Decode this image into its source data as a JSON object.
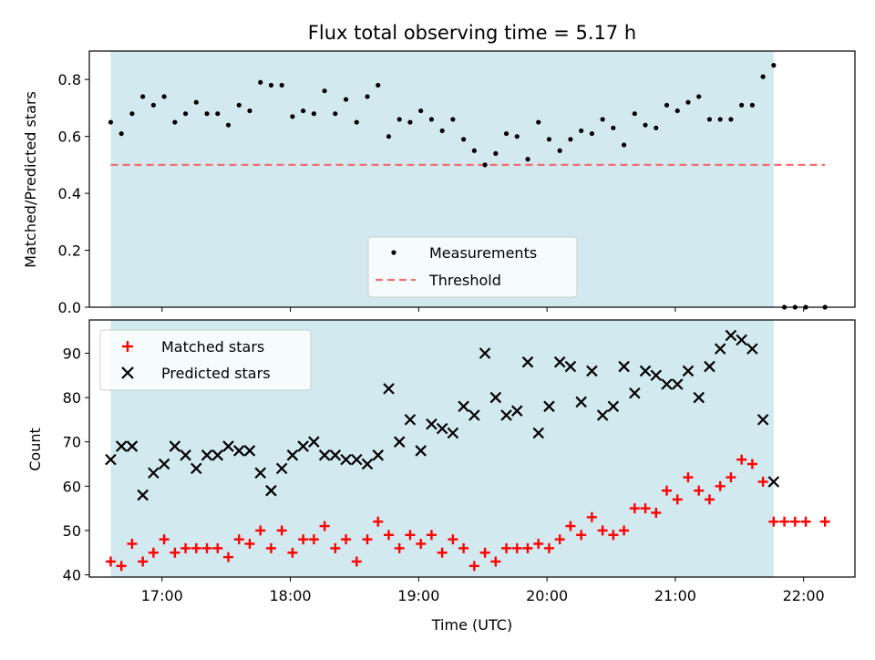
{
  "chart_data": [
    {
      "type": "scatter",
      "title": "Flux total observing time = 5.17 h",
      "xlabel": "",
      "ylabel": "Matched/Predicted stars",
      "x_is_time": true,
      "xlim": [
        "16:26",
        "22:24"
      ],
      "ylim": [
        0.0,
        0.9
      ],
      "yticks": [
        "0.0",
        "0.2",
        "0.4",
        "0.6",
        "0.8"
      ],
      "shaded_interval": [
        "16:36",
        "21:46"
      ],
      "shade_color": "#d2e9f0",
      "legend": {
        "placement": "lower center",
        "entries": [
          {
            "label": "Measurements",
            "marker": "dot",
            "color": "#000000"
          },
          {
            "label": "Threshold",
            "marker": "dashed-line",
            "color": "#f07070"
          }
        ]
      },
      "threshold": {
        "name": "Threshold",
        "y": 0.5,
        "x_range": [
          "16:36",
          "22:10"
        ],
        "color": "#f07070"
      },
      "series": [
        {
          "name": "Measurements",
          "color": "#000000",
          "points": [
            [
              "16:36",
              0.65
            ],
            [
              "16:41",
              0.61
            ],
            [
              "16:46",
              0.68
            ],
            [
              "16:51",
              0.74
            ],
            [
              "16:56",
              0.71
            ],
            [
              "17:01",
              0.74
            ],
            [
              "17:06",
              0.65
            ],
            [
              "17:11",
              0.68
            ],
            [
              "17:16",
              0.72
            ],
            [
              "17:21",
              0.68
            ],
            [
              "17:26",
              0.68
            ],
            [
              "17:31",
              0.64
            ],
            [
              "17:36",
              0.71
            ],
            [
              "17:41",
              0.69
            ],
            [
              "17:46",
              0.79
            ],
            [
              "17:51",
              0.78
            ],
            [
              "17:56",
              0.78
            ],
            [
              "18:01",
              0.67
            ],
            [
              "18:06",
              0.69
            ],
            [
              "18:11",
              0.68
            ],
            [
              "18:16",
              0.76
            ],
            [
              "18:21",
              0.68
            ],
            [
              "18:26",
              0.73
            ],
            [
              "18:31",
              0.65
            ],
            [
              "18:36",
              0.74
            ],
            [
              "18:41",
              0.78
            ],
            [
              "18:46",
              0.6
            ],
            [
              "18:51",
              0.66
            ],
            [
              "18:56",
              0.65
            ],
            [
              "19:01",
              0.69
            ],
            [
              "19:06",
              0.66
            ],
            [
              "19:11",
              0.62
            ],
            [
              "19:16",
              0.66
            ],
            [
              "19:21",
              0.59
            ],
            [
              "19:26",
              0.55
            ],
            [
              "19:31",
              0.5
            ],
            [
              "19:36",
              0.54
            ],
            [
              "19:41",
              0.61
            ],
            [
              "19:46",
              0.6
            ],
            [
              "19:51",
              0.52
            ],
            [
              "19:56",
              0.65
            ],
            [
              "20:01",
              0.59
            ],
            [
              "20:06",
              0.55
            ],
            [
              "20:11",
              0.59
            ],
            [
              "20:16",
              0.62
            ],
            [
              "20:21",
              0.61
            ],
            [
              "20:26",
              0.66
            ],
            [
              "20:31",
              0.63
            ],
            [
              "20:36",
              0.57
            ],
            [
              "20:41",
              0.68
            ],
            [
              "20:46",
              0.64
            ],
            [
              "20:51",
              0.63
            ],
            [
              "20:56",
              0.71
            ],
            [
              "21:01",
              0.69
            ],
            [
              "21:06",
              0.72
            ],
            [
              "21:11",
              0.74
            ],
            [
              "21:16",
              0.66
            ],
            [
              "21:21",
              0.66
            ],
            [
              "21:26",
              0.66
            ],
            [
              "21:31",
              0.71
            ],
            [
              "21:36",
              0.71
            ],
            [
              "21:41",
              0.81
            ],
            [
              "21:46",
              0.85
            ],
            [
              "21:51",
              0.0
            ],
            [
              "21:56",
              0.0
            ],
            [
              "22:01",
              0.0
            ],
            [
              "22:10",
              0.0
            ]
          ]
        }
      ]
    },
    {
      "type": "scatter",
      "title": "",
      "xlabel": "Time (UTC)",
      "ylabel": "Count",
      "x_is_time": true,
      "xlim": [
        "16:26",
        "22:24"
      ],
      "xticks": [
        "17:00",
        "18:00",
        "19:00",
        "20:00",
        "21:00",
        "22:00"
      ],
      "ylim": [
        39.5,
        97.5
      ],
      "yticks": [
        "40",
        "50",
        "60",
        "70",
        "80",
        "90"
      ],
      "shaded_interval": [
        "16:36",
        "21:46"
      ],
      "shade_color": "#d2e9f0",
      "legend": {
        "placement": "upper left",
        "entries": [
          {
            "label": "Matched stars",
            "marker": "plus",
            "color": "#ff0000"
          },
          {
            "label": "Predicted stars",
            "marker": "x",
            "color": "#000000"
          }
        ]
      },
      "series": [
        {
          "name": "Matched stars",
          "marker": "plus",
          "color": "#ff0000",
          "points": [
            [
              "16:36",
              43
            ],
            [
              "16:41",
              42
            ],
            [
              "16:46",
              47
            ],
            [
              "16:51",
              43
            ],
            [
              "16:56",
              45
            ],
            [
              "17:01",
              48
            ],
            [
              "17:06",
              45
            ],
            [
              "17:11",
              46
            ],
            [
              "17:16",
              46
            ],
            [
              "17:21",
              46
            ],
            [
              "17:26",
              46
            ],
            [
              "17:31",
              44
            ],
            [
              "17:36",
              48
            ],
            [
              "17:41",
              47
            ],
            [
              "17:46",
              50
            ],
            [
              "17:51",
              46
            ],
            [
              "17:56",
              50
            ],
            [
              "18:01",
              45
            ],
            [
              "18:06",
              48
            ],
            [
              "18:11",
              48
            ],
            [
              "18:16",
              51
            ],
            [
              "18:21",
              46
            ],
            [
              "18:26",
              48
            ],
            [
              "18:31",
              43
            ],
            [
              "18:36",
              48
            ],
            [
              "18:41",
              52
            ],
            [
              "18:46",
              49
            ],
            [
              "18:51",
              46
            ],
            [
              "18:56",
              49
            ],
            [
              "19:01",
              47
            ],
            [
              "19:06",
              49
            ],
            [
              "19:11",
              45
            ],
            [
              "19:16",
              48
            ],
            [
              "19:21",
              46
            ],
            [
              "19:26",
              42
            ],
            [
              "19:31",
              45
            ],
            [
              "19:36",
              43
            ],
            [
              "19:41",
              46
            ],
            [
              "19:46",
              46
            ],
            [
              "19:51",
              46
            ],
            [
              "19:56",
              47
            ],
            [
              "20:01",
              46
            ],
            [
              "20:06",
              48
            ],
            [
              "20:11",
              51
            ],
            [
              "20:16",
              49
            ],
            [
              "20:21",
              53
            ],
            [
              "20:26",
              50
            ],
            [
              "20:31",
              49
            ],
            [
              "20:36",
              50
            ],
            [
              "20:41",
              55
            ],
            [
              "20:46",
              55
            ],
            [
              "20:51",
              54
            ],
            [
              "20:56",
              59
            ],
            [
              "21:01",
              57
            ],
            [
              "21:06",
              62
            ],
            [
              "21:11",
              59
            ],
            [
              "21:16",
              57
            ],
            [
              "21:21",
              60
            ],
            [
              "21:26",
              62
            ],
            [
              "21:31",
              66
            ],
            [
              "21:36",
              65
            ],
            [
              "21:41",
              61
            ],
            [
              "21:46",
              52
            ],
            [
              "21:51",
              52
            ],
            [
              "21:56",
              52
            ],
            [
              "22:01",
              52
            ],
            [
              "22:10",
              52
            ]
          ]
        },
        {
          "name": "Predicted stars",
          "marker": "x",
          "color": "#000000",
          "points": [
            [
              "16:36",
              66
            ],
            [
              "16:41",
              69
            ],
            [
              "16:46",
              69
            ],
            [
              "16:51",
              58
            ],
            [
              "16:56",
              63
            ],
            [
              "17:01",
              65
            ],
            [
              "17:06",
              69
            ],
            [
              "17:11",
              67
            ],
            [
              "17:16",
              64
            ],
            [
              "17:21",
              67
            ],
            [
              "17:26",
              67
            ],
            [
              "17:31",
              69
            ],
            [
              "17:36",
              68
            ],
            [
              "17:41",
              68
            ],
            [
              "17:46",
              63
            ],
            [
              "17:51",
              59
            ],
            [
              "17:56",
              64
            ],
            [
              "18:01",
              67
            ],
            [
              "18:06",
              69
            ],
            [
              "18:11",
              70
            ],
            [
              "18:16",
              67
            ],
            [
              "18:21",
              67
            ],
            [
              "18:26",
              66
            ],
            [
              "18:31",
              66
            ],
            [
              "18:36",
              65
            ],
            [
              "18:41",
              67
            ],
            [
              "18:46",
              82
            ],
            [
              "18:51",
              70
            ],
            [
              "18:56",
              75
            ],
            [
              "19:01",
              68
            ],
            [
              "19:06",
              74
            ],
            [
              "19:11",
              73
            ],
            [
              "19:16",
              72
            ],
            [
              "19:21",
              78
            ],
            [
              "19:26",
              76
            ],
            [
              "19:31",
              90
            ],
            [
              "19:36",
              80
            ],
            [
              "19:41",
              76
            ],
            [
              "19:46",
              77
            ],
            [
              "19:51",
              88
            ],
            [
              "19:56",
              72
            ],
            [
              "20:01",
              78
            ],
            [
              "20:06",
              88
            ],
            [
              "20:11",
              87
            ],
            [
              "20:16",
              79
            ],
            [
              "20:21",
              86
            ],
            [
              "20:26",
              76
            ],
            [
              "20:31",
              78
            ],
            [
              "20:36",
              87
            ],
            [
              "20:41",
              81
            ],
            [
              "20:46",
              86
            ],
            [
              "20:51",
              85
            ],
            [
              "20:56",
              83
            ],
            [
              "21:01",
              83
            ],
            [
              "21:06",
              86
            ],
            [
              "21:11",
              80
            ],
            [
              "21:16",
              87
            ],
            [
              "21:21",
              91
            ],
            [
              "21:26",
              94
            ],
            [
              "21:31",
              93
            ],
            [
              "21:36",
              91
            ],
            [
              "21:41",
              75
            ],
            [
              "21:46",
              61
            ]
          ]
        }
      ]
    }
  ]
}
